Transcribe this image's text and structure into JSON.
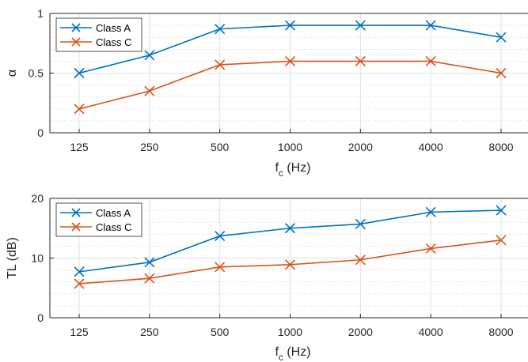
{
  "chart_data": [
    {
      "type": "line",
      "categories": [
        "125",
        "250",
        "500",
        "1000",
        "2000",
        "4000",
        "8000"
      ],
      "series": [
        {
          "name": "Class A",
          "values": [
            0.5,
            0.65,
            0.87,
            0.9,
            0.9,
            0.9,
            0.8
          ],
          "color": "#0072BD"
        },
        {
          "name": "Class C",
          "values": [
            0.2,
            0.35,
            0.57,
            0.6,
            0.6,
            0.6,
            0.5
          ],
          "color": "#D95319"
        }
      ],
      "xlabel": {
        "main": "f",
        "sub": "c",
        "unit": " (Hz)"
      },
      "ylabel": "α",
      "ylim": [
        0,
        1
      ],
      "yticks": [
        0,
        0.5,
        1
      ],
      "ytick_labels": [
        "0",
        "0.5",
        "1"
      ],
      "grid": true,
      "minor_grid": true,
      "legend_position": "top-left",
      "marker": "x"
    },
    {
      "type": "line",
      "categories": [
        "125",
        "250",
        "500",
        "1000",
        "2000",
        "4000",
        "8000"
      ],
      "series": [
        {
          "name": "Class A",
          "values": [
            7.7,
            9.3,
            13.7,
            15.0,
            15.7,
            17.7,
            18.0
          ],
          "color": "#0072BD"
        },
        {
          "name": "Class C",
          "values": [
            5.7,
            6.6,
            8.5,
            8.9,
            9.7,
            11.6,
            13.0
          ],
          "color": "#D95319"
        }
      ],
      "xlabel": {
        "main": "f",
        "sub": "c",
        "unit": " (Hz)"
      },
      "ylabel": "TL (dB)",
      "ylim": [
        0,
        20
      ],
      "yticks": [
        0,
        10,
        20
      ],
      "ytick_labels": [
        "0",
        "10",
        "20"
      ],
      "grid": true,
      "minor_grid": true,
      "legend_position": "top-left",
      "marker": "x"
    }
  ]
}
